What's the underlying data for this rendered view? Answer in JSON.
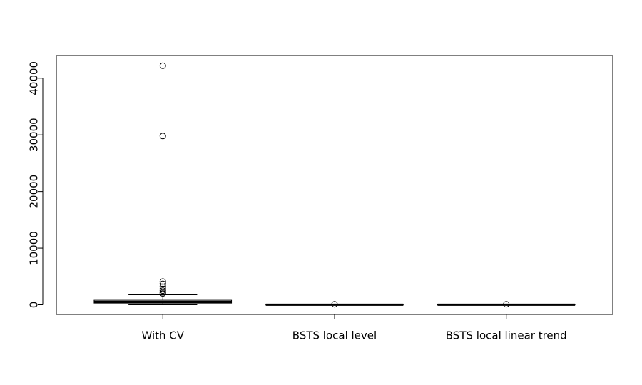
{
  "chart_data": {
    "type": "boxplot",
    "categories": [
      "With CV",
      "BSTS local level",
      "BSTS local linear trend"
    ],
    "boxes": [
      {
        "min": 0,
        "q1": 300,
        "median": 500,
        "q3": 800,
        "max": 1760,
        "outliers": [
          2000,
          2200,
          2500,
          2800,
          3200,
          3700,
          4100,
          29800,
          42200
        ]
      },
      {
        "min": 0,
        "q1": 10,
        "median": 20,
        "q3": 40,
        "max": 80,
        "outliers": [
          100
        ]
      },
      {
        "min": 0,
        "q1": 10,
        "median": 20,
        "q3": 40,
        "max": 80,
        "outliers": [
          100
        ]
      }
    ],
    "ylim": [
      -1700,
      44000
    ],
    "yticks": [
      0,
      10000,
      20000,
      30000,
      40000
    ]
  }
}
